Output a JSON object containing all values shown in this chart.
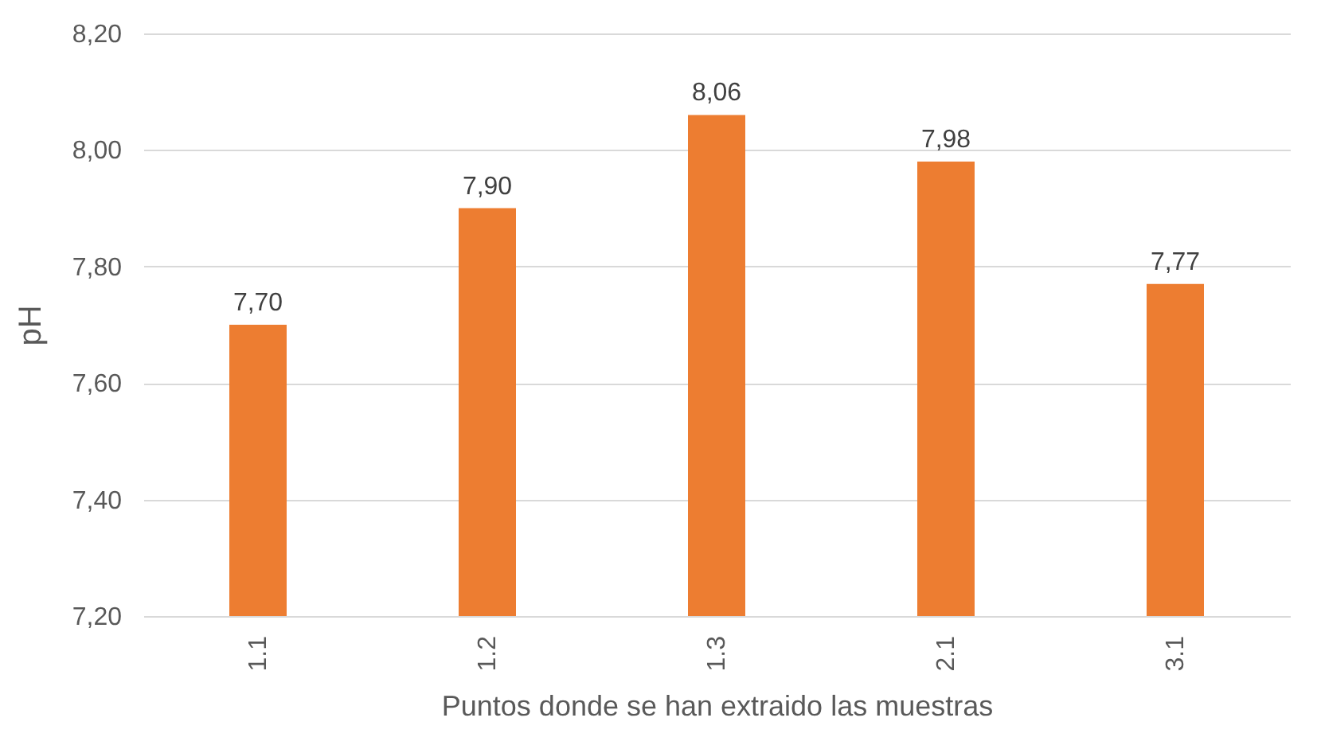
{
  "chart_data": {
    "type": "bar",
    "xlabel": "Puntos donde se han extraido las muestras",
    "ylabel": "pH",
    "categories": [
      "1.1",
      "1.2",
      "1.3",
      "2.1",
      "3.1"
    ],
    "values": [
      7.7,
      7.9,
      8.06,
      7.98,
      7.77
    ],
    "value_labels": [
      "7,70",
      "7,90",
      "8,06",
      "7,98",
      "7,77"
    ],
    "color": "#ed7d31",
    "ylim": [
      7.2,
      8.2
    ],
    "yticks": [
      {
        "value": 7.2,
        "label": "7,20"
      },
      {
        "value": 7.4,
        "label": "7,40"
      },
      {
        "value": 7.6,
        "label": "7,60"
      },
      {
        "value": 7.8,
        "label": "7,80"
      },
      {
        "value": 8.0,
        "label": "8,00"
      },
      {
        "value": 8.2,
        "label": "8,20"
      }
    ],
    "grid": "y"
  }
}
